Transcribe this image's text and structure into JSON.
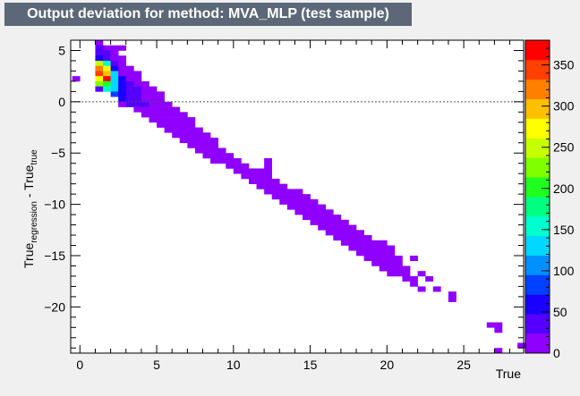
{
  "title": "Output deviation for method: MVA_MLP (test sample)",
  "chart_data": {
    "type": "heatmap",
    "title": "Output deviation for method: MVA_MLP (test sample)",
    "xlabel": "True",
    "ylabel": {
      "main": "True",
      "sub1": "regression",
      "mid": " - True",
      "sub2": "true"
    },
    "xlim": [
      -0.6,
      28.9
    ],
    "ylim": [
      -24.5,
      6.0
    ],
    "xbin": 0.5,
    "ybin": 0.5,
    "xticks": [
      0,
      5,
      10,
      15,
      20,
      25
    ],
    "yticks": [
      -20,
      -15,
      -10,
      -5,
      0,
      5
    ],
    "reference_line": 0,
    "grid": false,
    "legend": "none",
    "colorbar": {
      "range": [
        0,
        380
      ],
      "ticks": [
        0,
        50,
        100,
        150,
        200,
        250,
        300,
        350
      ],
      "colors": [
        "#8f00ff",
        "#5500ff",
        "#1a00ff",
        "#0040ff",
        "#0090ff",
        "#00d8ff",
        "#00ffd0",
        "#00ff80",
        "#20ff20",
        "#80ff00",
        "#c8ff00",
        "#ffff00",
        "#ffc000",
        "#ff8000",
        "#ff4000",
        "#ff0000"
      ]
    },
    "cells": [
      {
        "x": -0.25,
        "y": 2.25,
        "v": 8
      },
      {
        "x": 1.25,
        "y": 5.75,
        "v": 15
      },
      {
        "x": 1.75,
        "y": 5.25,
        "v": 12
      },
      {
        "x": 2.25,
        "y": 5.25,
        "v": 8
      },
      {
        "x": 2.75,
        "y": 5.25,
        "v": 6
      },
      {
        "x": 1.25,
        "y": 5.25,
        "v": 30
      },
      {
        "x": 1.25,
        "y": 4.75,
        "v": 35
      },
      {
        "x": 1.75,
        "y": 4.75,
        "v": 45
      },
      {
        "x": 2.25,
        "y": 4.75,
        "v": 15
      },
      {
        "x": 1.25,
        "y": 4.25,
        "v": 60
      },
      {
        "x": 1.75,
        "y": 4.25,
        "v": 30
      },
      {
        "x": 2.25,
        "y": 4.25,
        "v": 20
      },
      {
        "x": 2.75,
        "y": 4.25,
        "v": 10
      },
      {
        "x": 1.25,
        "y": 3.75,
        "v": 250
      },
      {
        "x": 1.75,
        "y": 3.75,
        "v": 160
      },
      {
        "x": 2.25,
        "y": 3.75,
        "v": 40
      },
      {
        "x": 2.75,
        "y": 3.75,
        "v": 12
      },
      {
        "x": 1.25,
        "y": 3.25,
        "v": 310
      },
      {
        "x": 1.75,
        "y": 3.25,
        "v": 280
      },
      {
        "x": 2.25,
        "y": 3.25,
        "v": 60
      },
      {
        "x": 2.75,
        "y": 3.25,
        "v": 15
      },
      {
        "x": 3.25,
        "y": 3.25,
        "v": 8
      },
      {
        "x": 1.25,
        "y": 2.75,
        "v": 340
      },
      {
        "x": 1.75,
        "y": 2.75,
        "v": 300
      },
      {
        "x": 2.25,
        "y": 2.75,
        "v": 120
      },
      {
        "x": 2.75,
        "y": 2.75,
        "v": 20
      },
      {
        "x": 3.25,
        "y": 2.75,
        "v": 10
      },
      {
        "x": 3.75,
        "y": 2.75,
        "v": 6
      },
      {
        "x": 1.25,
        "y": 2.25,
        "v": 270
      },
      {
        "x": 1.75,
        "y": 2.25,
        "v": 370
      },
      {
        "x": 2.25,
        "y": 2.25,
        "v": 140
      },
      {
        "x": 2.75,
        "y": 2.25,
        "v": 50
      },
      {
        "x": 3.25,
        "y": 2.25,
        "v": 20
      },
      {
        "x": 3.75,
        "y": 2.25,
        "v": 8
      },
      {
        "x": 1.25,
        "y": 1.75,
        "v": 230
      },
      {
        "x": 1.75,
        "y": 1.75,
        "v": 210
      },
      {
        "x": 2.25,
        "y": 1.75,
        "v": 130
      },
      {
        "x": 2.75,
        "y": 1.75,
        "v": 60
      },
      {
        "x": 3.25,
        "y": 1.75,
        "v": 35
      },
      {
        "x": 3.75,
        "y": 1.75,
        "v": 20
      },
      {
        "x": 4.25,
        "y": 1.75,
        "v": 10
      },
      {
        "x": 1.25,
        "y": 1.25,
        "v": 40
      },
      {
        "x": 1.75,
        "y": 1.25,
        "v": 150
      },
      {
        "x": 2.25,
        "y": 1.25,
        "v": 120
      },
      {
        "x": 2.75,
        "y": 1.25,
        "v": 70
      },
      {
        "x": 3.25,
        "y": 1.25,
        "v": 45
      },
      {
        "x": 3.75,
        "y": 1.25,
        "v": 25
      },
      {
        "x": 4.25,
        "y": 1.25,
        "v": 12
      },
      {
        "x": 4.75,
        "y": 1.25,
        "v": 6
      },
      {
        "x": 2.25,
        "y": 0.75,
        "v": 90
      },
      {
        "x": 2.75,
        "y": 0.75,
        "v": 60
      },
      {
        "x": 3.25,
        "y": 0.75,
        "v": 40
      },
      {
        "x": 3.75,
        "y": 0.75,
        "v": 25
      },
      {
        "x": 4.25,
        "y": 0.75,
        "v": 15
      },
      {
        "x": 4.75,
        "y": 0.75,
        "v": 8
      },
      {
        "x": 5.25,
        "y": 0.75,
        "v": 5
      },
      {
        "x": 2.75,
        "y": 0.25,
        "v": 55
      },
      {
        "x": 3.25,
        "y": 0.25,
        "v": 45
      },
      {
        "x": 3.75,
        "y": 0.25,
        "v": 30
      },
      {
        "x": 4.25,
        "y": 0.25,
        "v": 18
      },
      {
        "x": 4.75,
        "y": 0.25,
        "v": 10
      },
      {
        "x": 5.25,
        "y": 0.25,
        "v": 5
      },
      {
        "x": 2.75,
        "y": -0.25,
        "v": 8
      },
      {
        "x": 3.25,
        "y": -0.25,
        "v": 25
      },
      {
        "x": 3.75,
        "y": -0.25,
        "v": 30
      },
      {
        "x": 4.25,
        "y": -0.25,
        "v": 25
      },
      {
        "x": 4.75,
        "y": -0.25,
        "v": 15
      },
      {
        "x": 5.25,
        "y": -0.25,
        "v": 8
      },
      {
        "x": 5.75,
        "y": -0.25,
        "v": 5
      },
      {
        "x": 3.75,
        "y": -0.75,
        "v": 15
      },
      {
        "x": 4.25,
        "y": -0.75,
        "v": 20
      },
      {
        "x": 4.75,
        "y": -0.75,
        "v": 18
      },
      {
        "x": 5.25,
        "y": -0.75,
        "v": 12
      },
      {
        "x": 5.75,
        "y": -0.75,
        "v": 8
      },
      {
        "x": 6.25,
        "y": -0.75,
        "v": 5
      },
      {
        "x": 4.25,
        "y": -1.25,
        "v": 10
      },
      {
        "x": 4.75,
        "y": -1.25,
        "v": 15
      },
      {
        "x": 5.25,
        "y": -1.25,
        "v": 15
      },
      {
        "x": 5.75,
        "y": -1.25,
        "v": 12
      },
      {
        "x": 6.25,
        "y": -1.25,
        "v": 8
      },
      {
        "x": 6.75,
        "y": -1.25,
        "v": 5
      },
      {
        "x": 4.75,
        "y": -1.75,
        "v": 8
      },
      {
        "x": 5.25,
        "y": -1.75,
        "v": 12
      },
      {
        "x": 5.75,
        "y": -1.75,
        "v": 12
      },
      {
        "x": 6.25,
        "y": -1.75,
        "v": 10
      },
      {
        "x": 6.75,
        "y": -1.75,
        "v": 8
      },
      {
        "x": 7.25,
        "y": -1.75,
        "v": 5
      },
      {
        "x": 5.25,
        "y": -2.25,
        "v": 8
      },
      {
        "x": 5.75,
        "y": -2.25,
        "v": 10
      },
      {
        "x": 6.25,
        "y": -2.25,
        "v": 10
      },
      {
        "x": 6.75,
        "y": -2.25,
        "v": 8
      },
      {
        "x": 7.25,
        "y": -2.25,
        "v": 6
      },
      {
        "x": 5.75,
        "y": -2.75,
        "v": 7
      },
      {
        "x": 6.25,
        "y": -2.75,
        "v": 9
      },
      {
        "x": 6.75,
        "y": -2.75,
        "v": 9
      },
      {
        "x": 7.25,
        "y": -2.75,
        "v": 7
      },
      {
        "x": 7.75,
        "y": -2.75,
        "v": 5
      },
      {
        "x": 6.25,
        "y": -3.25,
        "v": 6
      },
      {
        "x": 6.75,
        "y": -3.25,
        "v": 8
      },
      {
        "x": 7.25,
        "y": -3.25,
        "v": 8
      },
      {
        "x": 7.75,
        "y": -3.25,
        "v": 6
      },
      {
        "x": 8.25,
        "y": -3.25,
        "v": 5
      },
      {
        "x": 6.75,
        "y": -3.75,
        "v": 6
      },
      {
        "x": 7.25,
        "y": -3.75,
        "v": 7
      },
      {
        "x": 7.75,
        "y": -3.75,
        "v": 7
      },
      {
        "x": 8.25,
        "y": -3.75,
        "v": 6
      },
      {
        "x": 8.75,
        "y": -3.75,
        "v": 5
      },
      {
        "x": 7.25,
        "y": -4.25,
        "v": 5
      },
      {
        "x": 7.75,
        "y": -4.25,
        "v": 7
      },
      {
        "x": 8.25,
        "y": -4.25,
        "v": 7
      },
      {
        "x": 8.75,
        "y": -4.25,
        "v": 5
      },
      {
        "x": 7.75,
        "y": -4.75,
        "v": 5
      },
      {
        "x": 8.25,
        "y": -4.75,
        "v": 6
      },
      {
        "x": 8.75,
        "y": -4.75,
        "v": 6
      },
      {
        "x": 9.25,
        "y": -4.75,
        "v": 5
      },
      {
        "x": 8.25,
        "y": -5.25,
        "v": 5
      },
      {
        "x": 8.75,
        "y": -5.25,
        "v": 6
      },
      {
        "x": 9.25,
        "y": -5.25,
        "v": 6
      },
      {
        "x": 9.75,
        "y": -5.25,
        "v": 5
      },
      {
        "x": 8.75,
        "y": -5.75,
        "v": 5
      },
      {
        "x": 9.25,
        "y": -5.75,
        "v": 5
      },
      {
        "x": 9.75,
        "y": -5.75,
        "v": 6
      },
      {
        "x": 10.25,
        "y": -5.75,
        "v": 5
      },
      {
        "x": 12.25,
        "y": -5.75,
        "v": 5
      },
      {
        "x": 9.75,
        "y": -6.25,
        "v": 5
      },
      {
        "x": 10.25,
        "y": -6.25,
        "v": 6
      },
      {
        "x": 10.75,
        "y": -6.25,
        "v": 5
      },
      {
        "x": 12.25,
        "y": -6.25,
        "v": 5
      },
      {
        "x": 10.25,
        "y": -6.75,
        "v": 5
      },
      {
        "x": 10.75,
        "y": -6.75,
        "v": 6
      },
      {
        "x": 11.25,
        "y": -6.75,
        "v": 6
      },
      {
        "x": 11.75,
        "y": -6.75,
        "v": 5
      },
      {
        "x": 12.25,
        "y": -6.75,
        "v": 5
      },
      {
        "x": 10.75,
        "y": -7.25,
        "v": 5
      },
      {
        "x": 11.25,
        "y": -7.25,
        "v": 6
      },
      {
        "x": 11.75,
        "y": -7.25,
        "v": 6
      },
      {
        "x": 12.25,
        "y": -7.25,
        "v": 5
      },
      {
        "x": 11.25,
        "y": -7.75,
        "v": 5
      },
      {
        "x": 11.75,
        "y": -7.75,
        "v": 6
      },
      {
        "x": 12.25,
        "y": -7.75,
        "v": 6
      },
      {
        "x": 12.75,
        "y": -7.75,
        "v": 5
      },
      {
        "x": 11.75,
        "y": -8.25,
        "v": 5
      },
      {
        "x": 12.25,
        "y": -8.25,
        "v": 6
      },
      {
        "x": 12.75,
        "y": -8.25,
        "v": 6
      },
      {
        "x": 13.25,
        "y": -8.25,
        "v": 5
      },
      {
        "x": 12.25,
        "y": -8.75,
        "v": 5
      },
      {
        "x": 12.75,
        "y": -8.75,
        "v": 6
      },
      {
        "x": 13.25,
        "y": -8.75,
        "v": 7
      },
      {
        "x": 13.75,
        "y": -8.75,
        "v": 5
      },
      {
        "x": 14.25,
        "y": -8.75,
        "v": 5
      },
      {
        "x": 12.75,
        "y": -9.25,
        "v": 5
      },
      {
        "x": 13.25,
        "y": -9.25,
        "v": 6
      },
      {
        "x": 13.75,
        "y": -9.25,
        "v": 7
      },
      {
        "x": 14.25,
        "y": -9.25,
        "v": 6
      },
      {
        "x": 14.75,
        "y": -9.25,
        "v": 5
      },
      {
        "x": 13.25,
        "y": -9.75,
        "v": 5
      },
      {
        "x": 13.75,
        "y": -9.75,
        "v": 6
      },
      {
        "x": 14.25,
        "y": -9.75,
        "v": 6
      },
      {
        "x": 14.75,
        "y": -9.75,
        "v": 6
      },
      {
        "x": 15.25,
        "y": -9.75,
        "v": 5
      },
      {
        "x": 13.75,
        "y": -10.25,
        "v": 5
      },
      {
        "x": 14.25,
        "y": -10.25,
        "v": 6
      },
      {
        "x": 14.75,
        "y": -10.25,
        "v": 6
      },
      {
        "x": 15.25,
        "y": -10.25,
        "v": 6
      },
      {
        "x": 15.75,
        "y": -10.25,
        "v": 5
      },
      {
        "x": 14.25,
        "y": -10.75,
        "v": 5
      },
      {
        "x": 14.75,
        "y": -10.75,
        "v": 5
      },
      {
        "x": 15.25,
        "y": -10.75,
        "v": 6
      },
      {
        "x": 15.75,
        "y": -10.75,
        "v": 6
      },
      {
        "x": 16.25,
        "y": -10.75,
        "v": 5
      },
      {
        "x": 14.75,
        "y": -11.25,
        "v": 5
      },
      {
        "x": 15.25,
        "y": -11.25,
        "v": 5
      },
      {
        "x": 15.75,
        "y": -11.25,
        "v": 6
      },
      {
        "x": 16.25,
        "y": -11.25,
        "v": 6
      },
      {
        "x": 16.75,
        "y": -11.25,
        "v": 5
      },
      {
        "x": 15.25,
        "y": -11.75,
        "v": 5
      },
      {
        "x": 15.75,
        "y": -11.75,
        "v": 5
      },
      {
        "x": 16.25,
        "y": -11.75,
        "v": 6
      },
      {
        "x": 16.75,
        "y": -11.75,
        "v": 6
      },
      {
        "x": 17.25,
        "y": -11.75,
        "v": 5
      },
      {
        "x": 15.75,
        "y": -12.25,
        "v": 5
      },
      {
        "x": 16.25,
        "y": -12.25,
        "v": 5
      },
      {
        "x": 16.75,
        "y": -12.25,
        "v": 6
      },
      {
        "x": 17.25,
        "y": -12.25,
        "v": 5
      },
      {
        "x": 17.75,
        "y": -12.25,
        "v": 5
      },
      {
        "x": 16.25,
        "y": -12.75,
        "v": 5
      },
      {
        "x": 16.75,
        "y": -12.75,
        "v": 5
      },
      {
        "x": 17.25,
        "y": -12.75,
        "v": 6
      },
      {
        "x": 17.75,
        "y": -12.75,
        "v": 5
      },
      {
        "x": 18.25,
        "y": -12.75,
        "v": 5
      },
      {
        "x": 16.75,
        "y": -13.25,
        "v": 5
      },
      {
        "x": 17.25,
        "y": -13.25,
        "v": 5
      },
      {
        "x": 17.75,
        "y": -13.25,
        "v": 5
      },
      {
        "x": 18.25,
        "y": -13.25,
        "v": 5
      },
      {
        "x": 18.75,
        "y": -13.25,
        "v": 5
      },
      {
        "x": 17.25,
        "y": -13.75,
        "v": 5
      },
      {
        "x": 17.75,
        "y": -13.75,
        "v": 5
      },
      {
        "x": 18.25,
        "y": -13.75,
        "v": 5
      },
      {
        "x": 18.75,
        "y": -13.75,
        "v": 5
      },
      {
        "x": 19.25,
        "y": -13.75,
        "v": 5
      },
      {
        "x": 19.75,
        "y": -13.75,
        "v": 5
      },
      {
        "x": 17.75,
        "y": -14.25,
        "v": 5
      },
      {
        "x": 18.25,
        "y": -14.25,
        "v": 5
      },
      {
        "x": 18.75,
        "y": -14.25,
        "v": 5
      },
      {
        "x": 19.25,
        "y": -14.25,
        "v": 5
      },
      {
        "x": 19.75,
        "y": -14.25,
        "v": 5
      },
      {
        "x": 20.25,
        "y": -14.25,
        "v": 5
      },
      {
        "x": 18.25,
        "y": -14.75,
        "v": 5
      },
      {
        "x": 18.75,
        "y": -14.75,
        "v": 5
      },
      {
        "x": 19.25,
        "y": -14.75,
        "v": 5
      },
      {
        "x": 19.75,
        "y": -14.75,
        "v": 5
      },
      {
        "x": 20.25,
        "y": -14.75,
        "v": 5
      },
      {
        "x": 18.75,
        "y": -15.25,
        "v": 5
      },
      {
        "x": 19.25,
        "y": -15.25,
        "v": 5
      },
      {
        "x": 19.75,
        "y": -15.25,
        "v": 5
      },
      {
        "x": 20.25,
        "y": -15.25,
        "v": 5
      },
      {
        "x": 20.75,
        "y": -15.25,
        "v": 5
      },
      {
        "x": 21.75,
        "y": -15.25,
        "v": 5
      },
      {
        "x": 19.25,
        "y": -15.75,
        "v": 5
      },
      {
        "x": 19.75,
        "y": -15.75,
        "v": 5
      },
      {
        "x": 20.25,
        "y": -15.75,
        "v": 5
      },
      {
        "x": 20.75,
        "y": -15.75,
        "v": 5
      },
      {
        "x": 19.75,
        "y": -16.25,
        "v": 5
      },
      {
        "x": 20.25,
        "y": -16.25,
        "v": 5
      },
      {
        "x": 20.75,
        "y": -16.25,
        "v": 5
      },
      {
        "x": 21.25,
        "y": -16.25,
        "v": 5
      },
      {
        "x": 20.25,
        "y": -16.75,
        "v": 5
      },
      {
        "x": 20.75,
        "y": -16.75,
        "v": 5
      },
      {
        "x": 21.25,
        "y": -16.75,
        "v": 5
      },
      {
        "x": 22.25,
        "y": -16.75,
        "v": 5
      },
      {
        "x": 21.25,
        "y": -17.25,
        "v": 5
      },
      {
        "x": 21.75,
        "y": -17.25,
        "v": 5
      },
      {
        "x": 22.75,
        "y": -17.25,
        "v": 5
      },
      {
        "x": 21.75,
        "y": -17.75,
        "v": 5
      },
      {
        "x": 22.25,
        "y": -18.25,
        "v": 5
      },
      {
        "x": 23.25,
        "y": -18.25,
        "v": 5
      },
      {
        "x": 24.25,
        "y": -18.75,
        "v": 5
      },
      {
        "x": 24.25,
        "y": -19.25,
        "v": 5
      },
      {
        "x": 26.75,
        "y": -21.75,
        "v": 5
      },
      {
        "x": 27.25,
        "y": -21.75,
        "v": 5
      },
      {
        "x": 27.25,
        "y": -22.25,
        "v": 5
      },
      {
        "x": 28.75,
        "y": -23.75,
        "v": 5
      },
      {
        "x": 27.25,
        "y": -24.25,
        "v": 5
      }
    ]
  }
}
